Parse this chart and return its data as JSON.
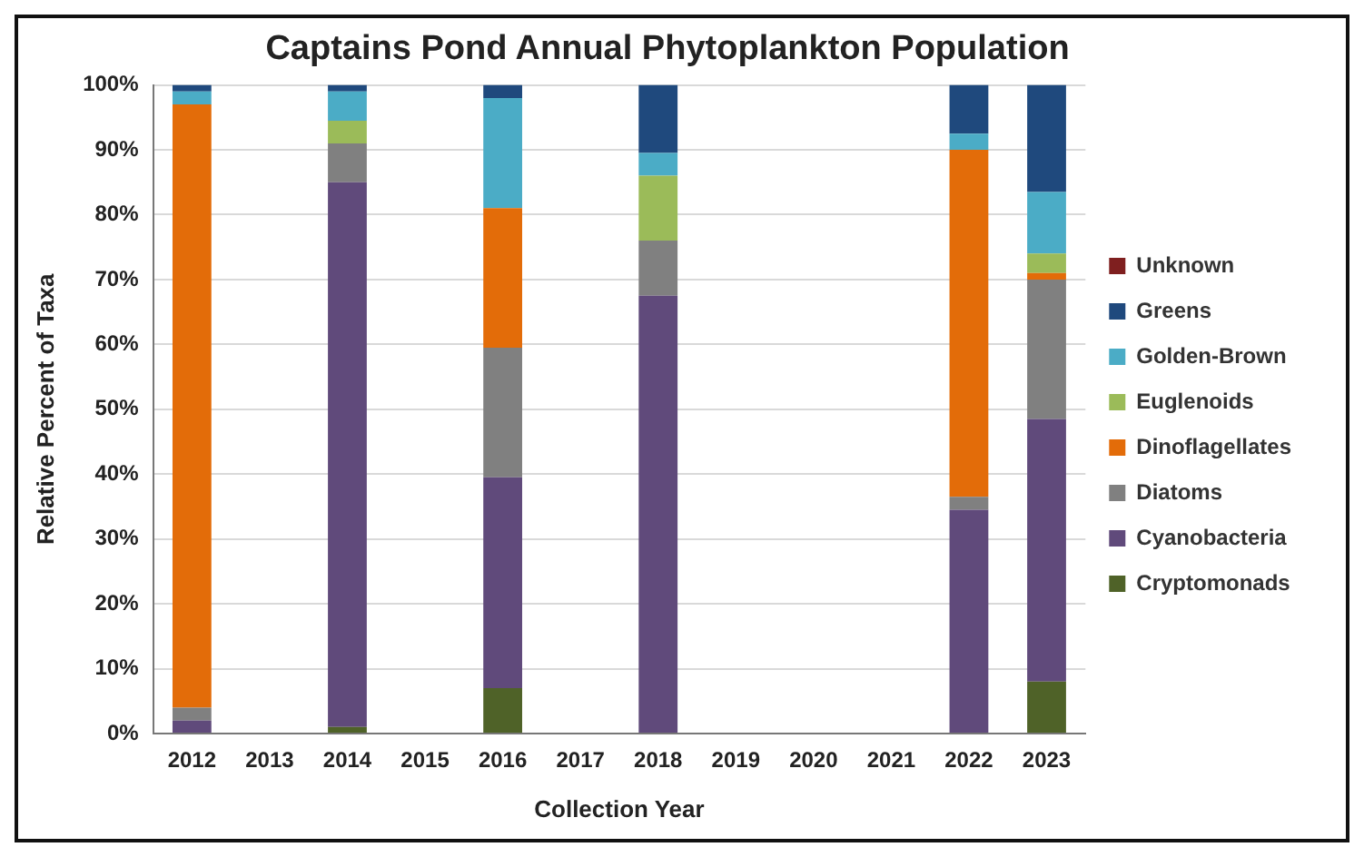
{
  "chart_data": {
    "type": "bar",
    "stacked": true,
    "title": "Captains Pond Annual Phytoplankton Population",
    "xlabel": "Collection Year",
    "ylabel": "Relative Percent of Taxa",
    "categories": [
      "2012",
      "2013",
      "2014",
      "2015",
      "2016",
      "2017",
      "2018",
      "2019",
      "2020",
      "2021",
      "2022",
      "2023"
    ],
    "series": [
      {
        "name": "Cryptomonads",
        "color": "#4f6228",
        "values": [
          0,
          null,
          1,
          null,
          7,
          null,
          0,
          null,
          null,
          null,
          0,
          8
        ]
      },
      {
        "name": "Cyanobacteria",
        "color": "#604a7b",
        "values": [
          2,
          null,
          84,
          null,
          32.5,
          null,
          67.5,
          null,
          null,
          null,
          34.5,
          40.5
        ]
      },
      {
        "name": "Diatoms",
        "color": "#808080",
        "values": [
          2,
          null,
          6,
          null,
          20,
          null,
          8.5,
          null,
          null,
          null,
          2,
          21.5
        ]
      },
      {
        "name": "Dinoflagellates",
        "color": "#e36c09",
        "values": [
          93,
          null,
          0,
          null,
          21.5,
          null,
          0,
          null,
          null,
          null,
          53.5,
          1
        ]
      },
      {
        "name": "Euglenoids",
        "color": "#9bbb59",
        "values": [
          0,
          null,
          3.5,
          null,
          0,
          null,
          10,
          null,
          null,
          null,
          0,
          3
        ]
      },
      {
        "name": "Golden-Brown",
        "color": "#4bacc6",
        "values": [
          2,
          null,
          4.5,
          null,
          17,
          null,
          3.5,
          null,
          null,
          null,
          2.5,
          9.5
        ]
      },
      {
        "name": "Greens",
        "color": "#1f497d",
        "values": [
          1,
          null,
          1,
          null,
          2,
          null,
          10.5,
          null,
          null,
          null,
          7.5,
          16.5
        ]
      },
      {
        "name": "Unknown",
        "color": "#7f1f1f",
        "values": [
          0,
          null,
          0,
          null,
          0,
          null,
          0,
          null,
          null,
          null,
          0,
          0
        ]
      }
    ],
    "ylim": [
      0,
      100
    ],
    "yticks": [
      {
        "value": 0,
        "label": "0%"
      },
      {
        "value": 10,
        "label": "10%"
      },
      {
        "value": 20,
        "label": "20%"
      },
      {
        "value": 30,
        "label": "30%"
      },
      {
        "value": 40,
        "label": "40%"
      },
      {
        "value": 50,
        "label": "50%"
      },
      {
        "value": 60,
        "label": "60%"
      },
      {
        "value": 70,
        "label": "70%"
      },
      {
        "value": 80,
        "label": "80%"
      },
      {
        "value": 90,
        "label": "90%"
      },
      {
        "value": 100,
        "label": "100%"
      }
    ],
    "grid": "y",
    "legend": "right"
  }
}
